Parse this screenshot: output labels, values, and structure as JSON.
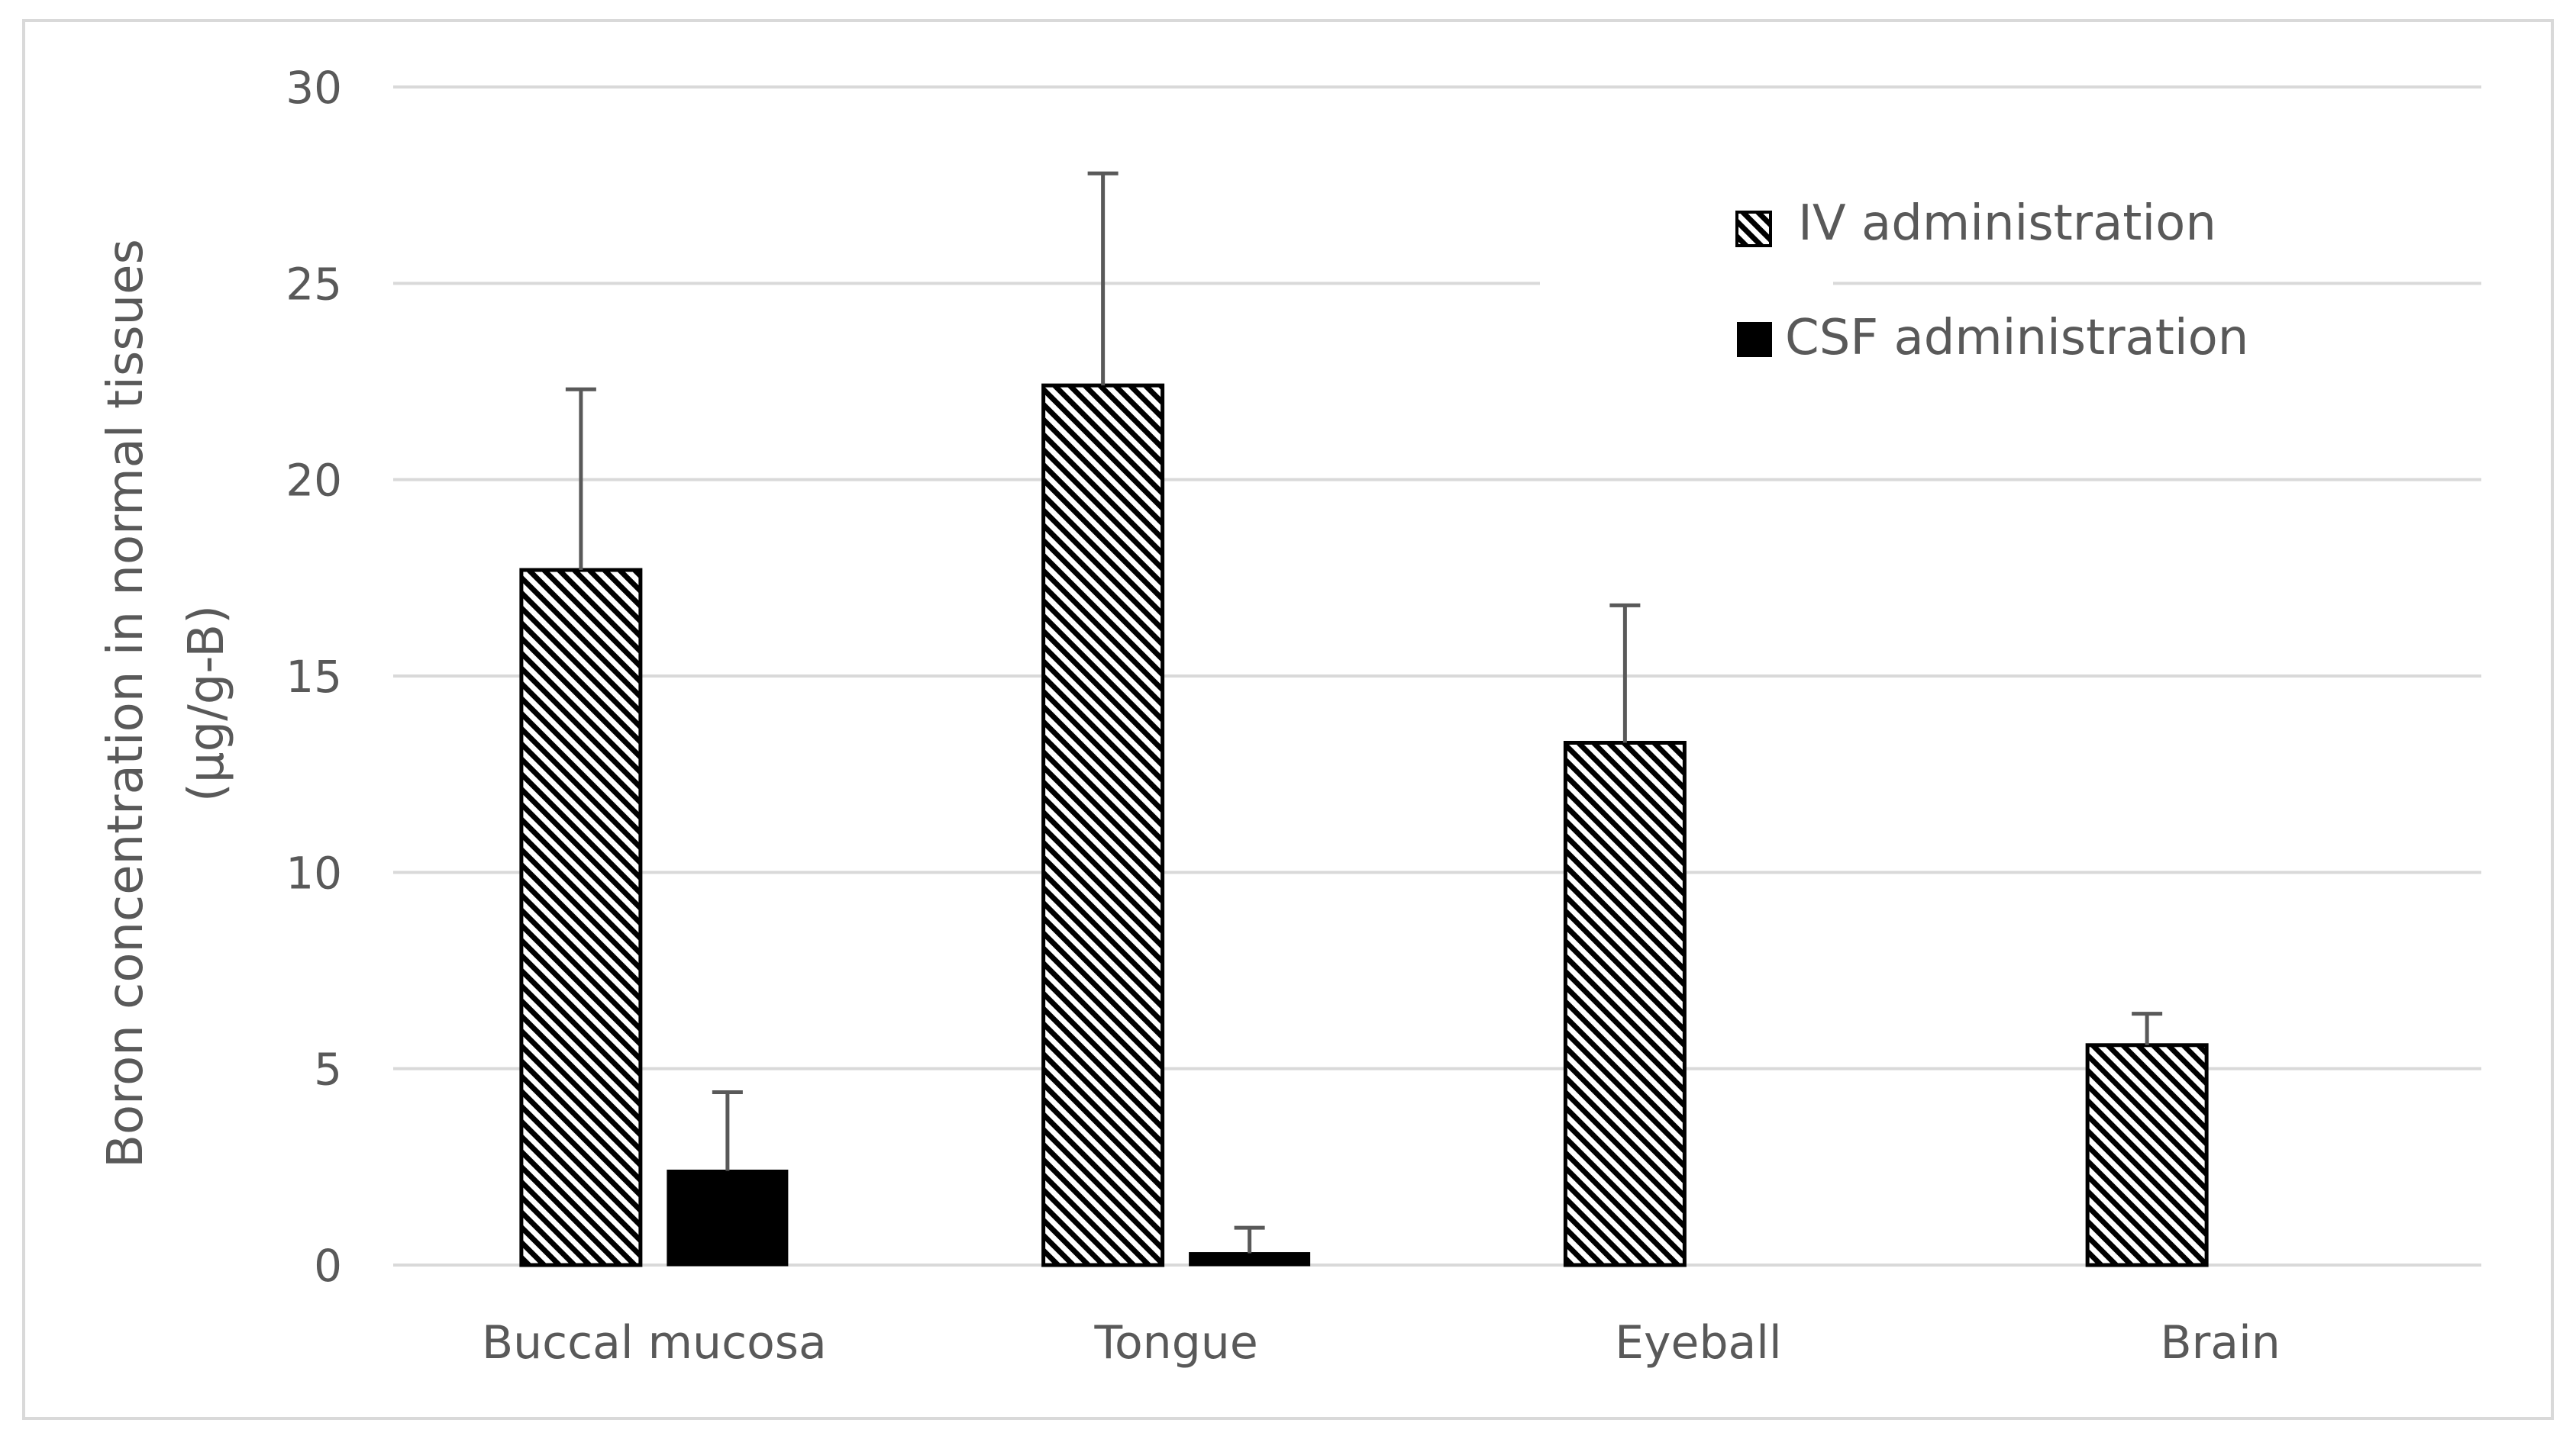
{
  "chart_data": {
    "type": "bar",
    "title": "",
    "xlabel": "",
    "ylabel": [
      "Boron concentration in normal tissues",
      "(µg/g-B)"
    ],
    "ylim": [
      0,
      30
    ],
    "yticks": [
      0,
      5,
      10,
      15,
      20,
      25,
      30
    ],
    "grid": true,
    "legend_position": "top-right",
    "categories": [
      "Buccal mucosa",
      "Tongue",
      "Eyeball",
      "Brain"
    ],
    "series": [
      {
        "name": "IV administration",
        "pattern": "hatched",
        "color": "#000000",
        "values": [
          17.7,
          22.4,
          13.3,
          5.6
        ],
        "errors": [
          4.6,
          5.4,
          3.5,
          0.8
        ]
      },
      {
        "name": "CSF administration",
        "pattern": "solid",
        "color": "#000000",
        "values": [
          2.4,
          0.3,
          null,
          null
        ],
        "errors": [
          2.0,
          0.65,
          null,
          null
        ]
      }
    ]
  }
}
